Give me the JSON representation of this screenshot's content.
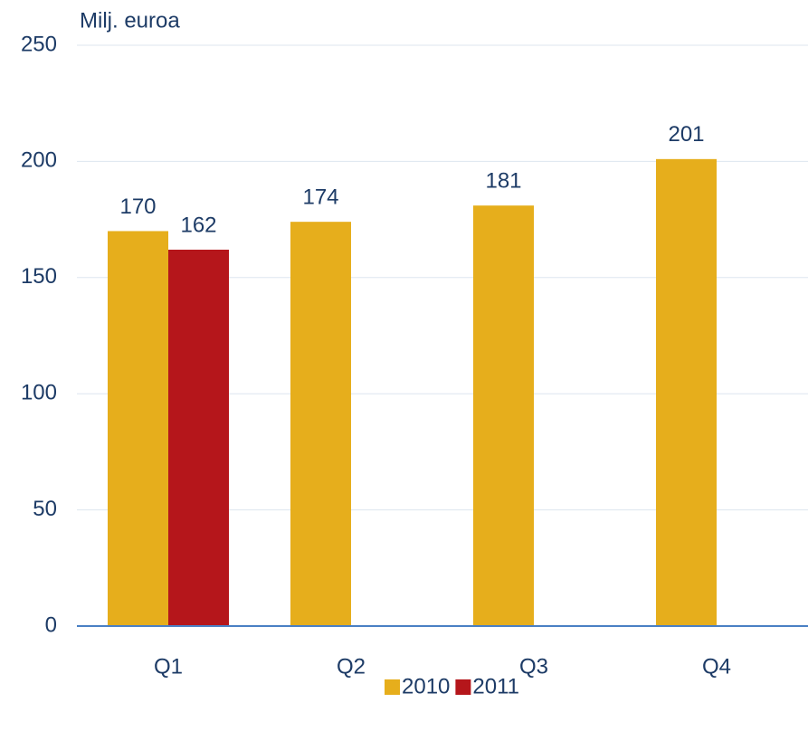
{
  "chart_data": {
    "type": "bar",
    "y_axis_label": "Milj. euroa",
    "categories": [
      "Q1",
      "Q2",
      "Q3",
      "Q4"
    ],
    "series": [
      {
        "name": "2010",
        "color": "#e6ae1c",
        "values": [
          170,
          174,
          181,
          201
        ]
      },
      {
        "name": "2011",
        "color": "#b5161b",
        "values": [
          162,
          null,
          null,
          null
        ]
      }
    ],
    "ylim": [
      0,
      250
    ],
    "yticks": [
      0,
      50,
      100,
      150,
      200,
      250
    ],
    "grid": true,
    "legend": "bottom"
  }
}
